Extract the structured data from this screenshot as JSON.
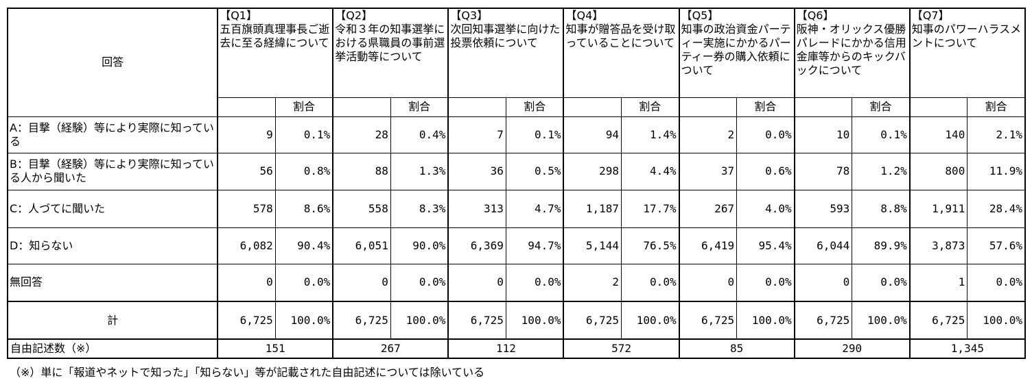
{
  "header": {
    "answer_label": "回答",
    "ratio_label": "割合"
  },
  "questions": [
    {
      "num": "【Q1】",
      "title": "五百旗頭真理事長ご逝去に至る経緯について"
    },
    {
      "num": "【Q2】",
      "title": "令和３年の知事選挙における県職員の事前選挙活動等について"
    },
    {
      "num": "【Q3】",
      "title": "次回知事選挙に向けた投票依頼について"
    },
    {
      "num": "【Q4】",
      "title": "知事が贈答品を受け取っていることについて"
    },
    {
      "num": "【Q5】",
      "title": "知事の政治資金パーティー実施にかかるパーティー券の購入依頼について"
    },
    {
      "num": "【Q6】",
      "title": "阪神・オリックス優勝パレードにかかる信用金庫等からのキックバックについて"
    },
    {
      "num": "【Q7】",
      "title": "知事のパワーハラスメントについて"
    }
  ],
  "rows": [
    {
      "label": "A：目撃（経験）等により実際に知っている",
      "cells": [
        [
          "9",
          "0.1%"
        ],
        [
          "28",
          "0.4%"
        ],
        [
          "7",
          "0.1%"
        ],
        [
          "94",
          "1.4%"
        ],
        [
          "2",
          "0.0%"
        ],
        [
          "10",
          "0.1%"
        ],
        [
          "140",
          "2.1%"
        ]
      ]
    },
    {
      "label": "B：目撃（経験）等により実際に知っている人から聞いた",
      "cells": [
        [
          "56",
          "0.8%"
        ],
        [
          "88",
          "1.3%"
        ],
        [
          "36",
          "0.5%"
        ],
        [
          "298",
          "4.4%"
        ],
        [
          "37",
          "0.6%"
        ],
        [
          "78",
          "1.2%"
        ],
        [
          "800",
          "11.9%"
        ]
      ]
    },
    {
      "label": "C：人づてに聞いた",
      "cells": [
        [
          "578",
          "8.6%"
        ],
        [
          "558",
          "8.3%"
        ],
        [
          "313",
          "4.7%"
        ],
        [
          "1,187",
          "17.7%"
        ],
        [
          "267",
          "4.0%"
        ],
        [
          "593",
          "8.8%"
        ],
        [
          "1,911",
          "28.4%"
        ]
      ]
    },
    {
      "label": "D：知らない",
      "cells": [
        [
          "6,082",
          "90.4%"
        ],
        [
          "6,051",
          "90.0%"
        ],
        [
          "6,369",
          "94.7%"
        ],
        [
          "5,144",
          "76.5%"
        ],
        [
          "6,419",
          "95.4%"
        ],
        [
          "6,044",
          "89.9%"
        ],
        [
          "3,873",
          "57.6%"
        ]
      ]
    },
    {
      "label": "無回答",
      "cells": [
        [
          "0",
          "0.0%"
        ],
        [
          "0",
          "0.0%"
        ],
        [
          "0",
          "0.0%"
        ],
        [
          "2",
          "0.0%"
        ],
        [
          "0",
          "0.0%"
        ],
        [
          "0",
          "0.0%"
        ],
        [
          "1",
          "0.0%"
        ]
      ]
    }
  ],
  "total": {
    "label": "計",
    "cells": [
      [
        "6,725",
        "100.0%"
      ],
      [
        "6,725",
        "100.0%"
      ],
      [
        "6,725",
        "100.0%"
      ],
      [
        "6,725",
        "100.0%"
      ],
      [
        "6,725",
        "100.0%"
      ],
      [
        "6,725",
        "100.0%"
      ],
      [
        "6,725",
        "100.0%"
      ]
    ]
  },
  "free_text": {
    "label": "自由記述数（※）",
    "values": [
      "151",
      "267",
      "112",
      "572",
      "85",
      "290",
      "1,345"
    ]
  },
  "footnote": "（※）単に「報道やネットで知った」「知らない」等が記載された自由記述については除いている"
}
